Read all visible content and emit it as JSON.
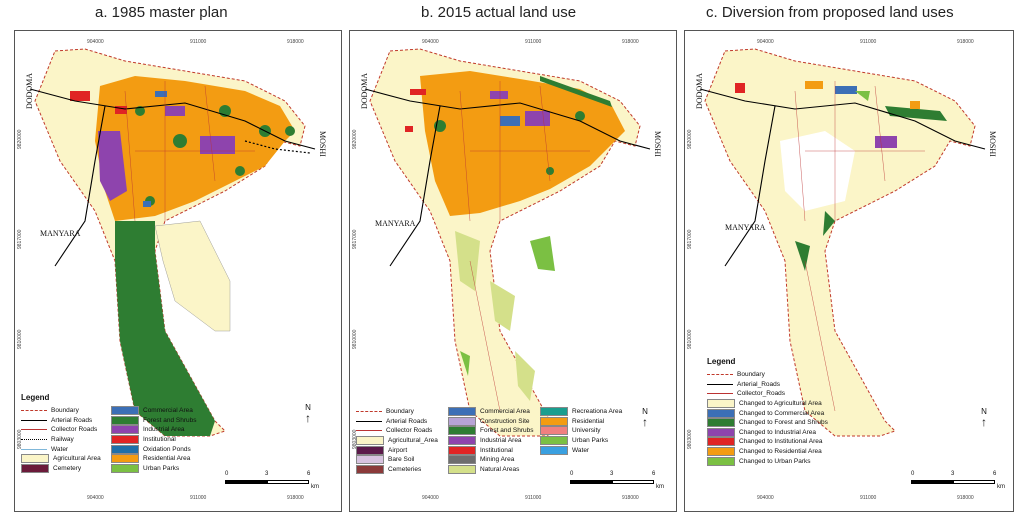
{
  "titles": {
    "a": "a. 1985 master plan",
    "b": "b. 2015 actual land use",
    "c": "c. Diversion from proposed land uses"
  },
  "places": {
    "dodoma": "DODOMA",
    "moshi": "MOSHI",
    "manyara": "MANYARA"
  },
  "ticks": {
    "top": [
      "904000",
      "911000",
      "918000"
    ],
    "side": [
      "9820000",
      "9817000",
      "9810000",
      "9803000"
    ]
  },
  "scale": {
    "zero": "0",
    "mid": "3",
    "end": "6",
    "unit": "km"
  },
  "north": "N",
  "legend_a": {
    "title": "Legend",
    "col1": [
      {
        "label": "Boundary",
        "kind": "line",
        "color": "#c0392b",
        "style": "dashed"
      },
      {
        "label": "Arterial Roads",
        "kind": "line",
        "color": "#000000",
        "style": "solid"
      },
      {
        "label": "Collector Roads",
        "kind": "line",
        "color": "#b33",
        "style": "solid"
      },
      {
        "label": "Railway",
        "kind": "line",
        "color": "#000000",
        "style": "dotted"
      },
      {
        "label": "Water",
        "kind": "line",
        "color": "#7fb7d9",
        "style": "solid"
      },
      {
        "label": "Agricultural Area",
        "kind": "fill",
        "color": "#fbf5c8"
      },
      {
        "label": "Cemetery",
        "kind": "fill",
        "color": "#6b1a3a"
      }
    ],
    "col2": [
      {
        "label": "Commercial Area",
        "kind": "fill",
        "color": "#3c6fb6"
      },
      {
        "label": "Forest and Shrubs",
        "kind": "fill",
        "color": "#2e7d32"
      },
      {
        "label": "Industrial Area",
        "kind": "fill",
        "color": "#8e44ad"
      },
      {
        "label": "Institutional",
        "kind": "fill",
        "color": "#e02424"
      },
      {
        "label": "Oxidation Ponds",
        "kind": "fill",
        "color": "#1e6fa8"
      },
      {
        "label": "Residential Area",
        "kind": "fill",
        "color": "#f39c12"
      },
      {
        "label": "Urban Parks",
        "kind": "fill",
        "color": "#7bc043"
      }
    ]
  },
  "legend_b": {
    "col1": [
      {
        "label": "Boundary",
        "kind": "line",
        "color": "#c0392b",
        "style": "dashed"
      },
      {
        "label": "Arterial Roads",
        "kind": "line",
        "color": "#000000",
        "style": "solid"
      },
      {
        "label": "Collector Roads",
        "kind": "line",
        "color": "#b33",
        "style": "solid"
      },
      {
        "label": "Agricultural_Area",
        "kind": "fill",
        "color": "#fbf5c8"
      },
      {
        "label": "Airport",
        "kind": "fill",
        "color": "#5b1a4a"
      },
      {
        "label": "Bare Soil",
        "kind": "fill",
        "color": "#d8c3e0"
      },
      {
        "label": "Cemeteries",
        "kind": "fill",
        "color": "#8b3a3a"
      }
    ],
    "col2": [
      {
        "label": "Commercial Area",
        "kind": "fill",
        "color": "#3c6fb6"
      },
      {
        "label": "Construction Site",
        "kind": "fill",
        "color": "#b7a3d6"
      },
      {
        "label": "Forest and Shrubs",
        "kind": "fill",
        "color": "#2e7d32"
      },
      {
        "label": "Industrial Area",
        "kind": "fill",
        "color": "#8e44ad"
      },
      {
        "label": "Institutional",
        "kind": "fill",
        "color": "#e02424"
      },
      {
        "label": "Mining Area",
        "kind": "fill",
        "color": "#6e6e6e"
      },
      {
        "label": "Natural Areas",
        "kind": "fill",
        "color": "#d4e08a"
      }
    ],
    "col3": [
      {
        "label": "Recreationa Area",
        "kind": "fill",
        "color": "#1a9e8f"
      },
      {
        "label": "Residential",
        "kind": "fill",
        "color": "#f39c12"
      },
      {
        "label": "University",
        "kind": "fill",
        "color": "#f08080"
      },
      {
        "label": "Urban Parks",
        "kind": "fill",
        "color": "#7bc043"
      },
      {
        "label": "Water",
        "kind": "fill",
        "color": "#3aa0e0"
      }
    ]
  },
  "legend_c": {
    "title": "Legend",
    "items": [
      {
        "label": "Boundary",
        "kind": "line",
        "color": "#c0392b",
        "style": "dashed"
      },
      {
        "label": "Arterial_Roads",
        "kind": "line",
        "color": "#000000",
        "style": "solid"
      },
      {
        "label": "Collector_Roads",
        "kind": "line",
        "color": "#b33",
        "style": "solid"
      },
      {
        "label": "Changed to Agricultural Area",
        "kind": "fill",
        "color": "#fbf5c8"
      },
      {
        "label": "Changed to Commercial Area",
        "kind": "fill",
        "color": "#3c6fb6"
      },
      {
        "label": "Changed to Forest and Shrubs",
        "kind": "fill",
        "color": "#2e7d32"
      },
      {
        "label": "Changed to Industrial Area",
        "kind": "fill",
        "color": "#8e44ad"
      },
      {
        "label": "Changed to Institutional Area",
        "kind": "fill",
        "color": "#e02424"
      },
      {
        "label": "Changed to Residential Area",
        "kind": "fill",
        "color": "#f39c12"
      },
      {
        "label": "Changed to Urban Parks",
        "kind": "fill",
        "color": "#7bc043"
      }
    ]
  },
  "colors": {
    "agri": "#fbf5c8",
    "residential": "#f39c12",
    "forest": "#2e7d32",
    "industrial": "#8e44ad",
    "commercial": "#3c6fb6",
    "institutional": "#e02424",
    "natural": "#d4e08a",
    "boundary": "#c0392b"
  }
}
